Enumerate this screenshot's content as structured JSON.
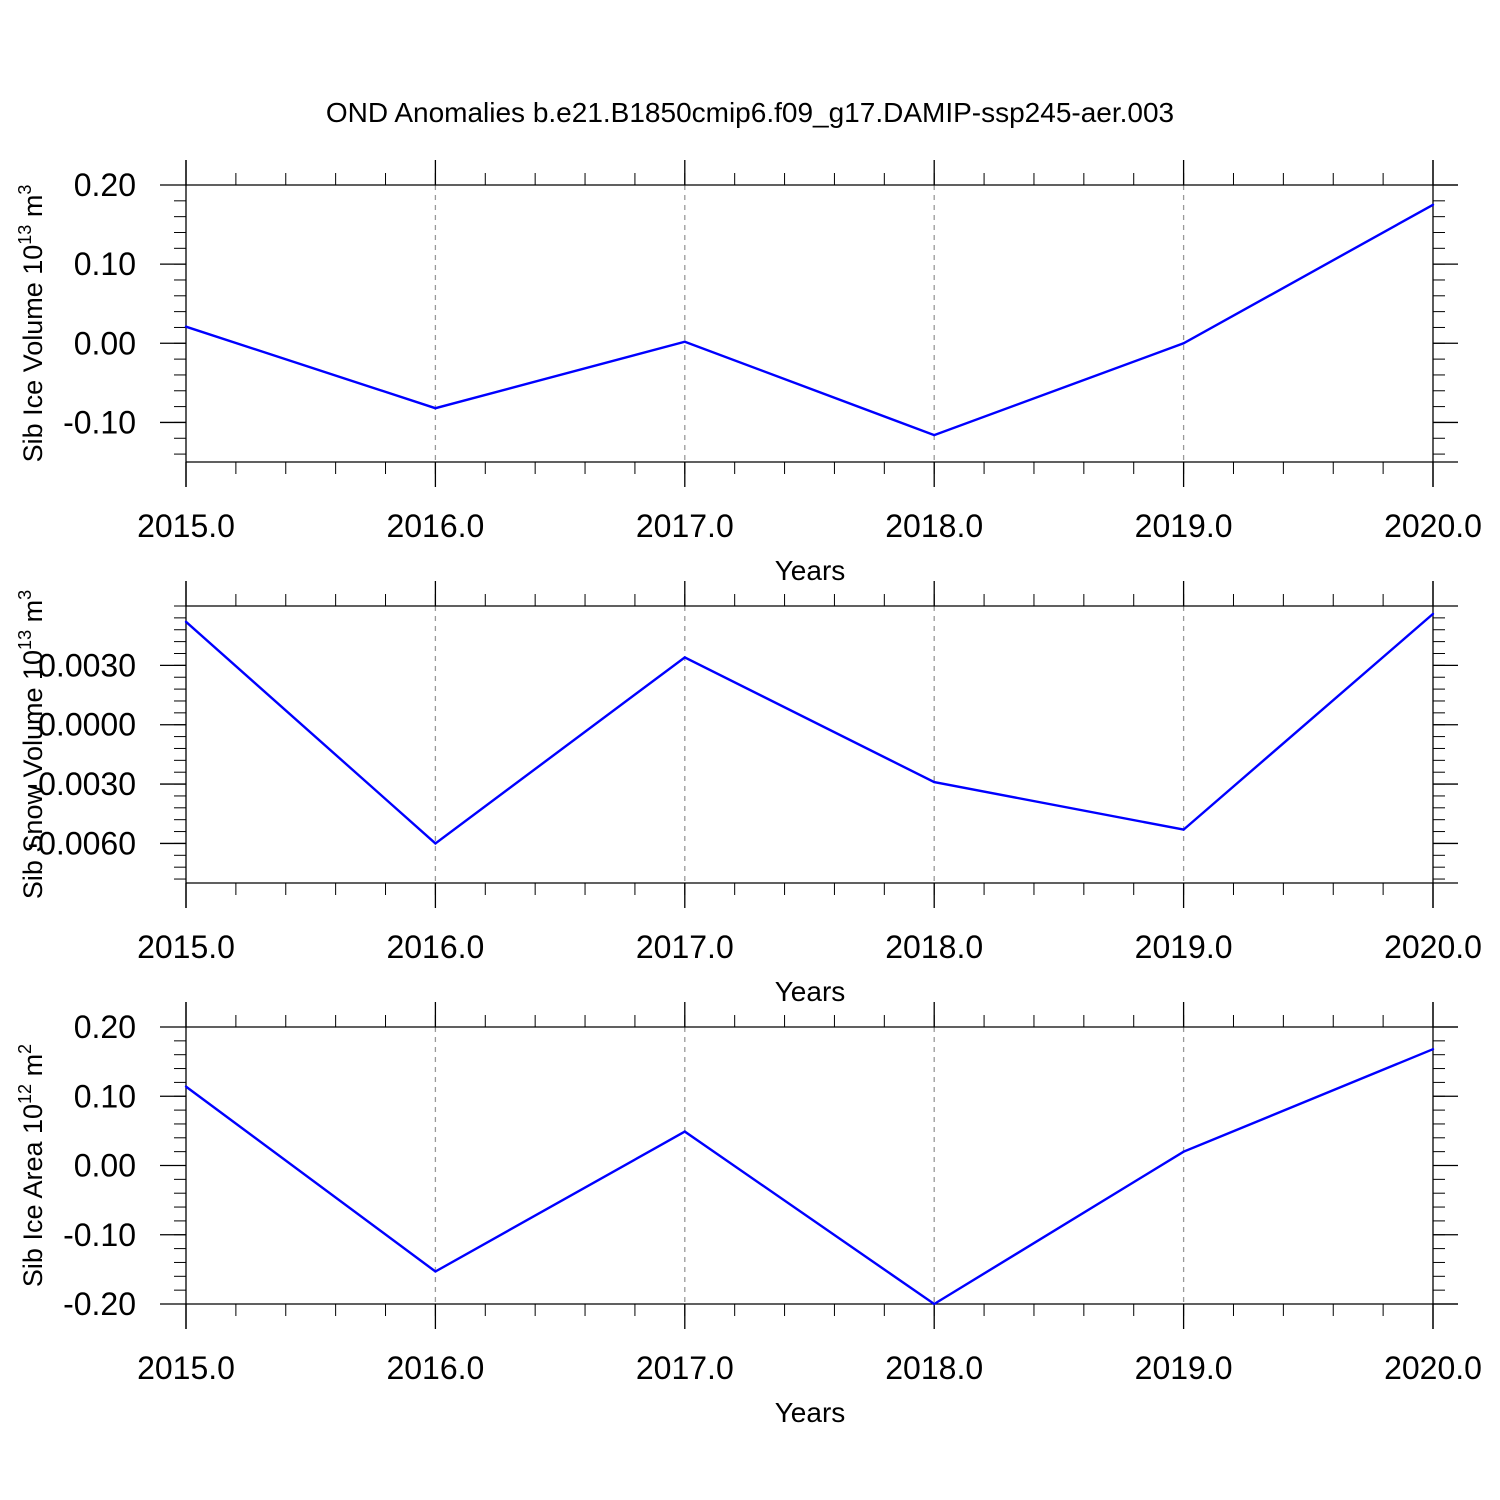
{
  "title": "OND Anomalies b.e21.B1850cmip6.f09_g17.DAMIP-ssp245-aer.003",
  "colors": {
    "line": "#0000ff",
    "axis": "#000000",
    "grid": "#999999"
  },
  "chart_data": [
    {
      "type": "line",
      "ylabel": {
        "base": "Sib Ice Volume 10",
        "exp": "13",
        "unit": " m",
        "unit_exp": "3"
      },
      "xlabel": "Years",
      "x": [
        2015,
        2016,
        2017,
        2018,
        2019,
        2020
      ],
      "series": [
        {
          "values": [
            0.021,
            -0.082,
            0.002,
            -0.116,
            0.0,
            0.175
          ]
        }
      ],
      "xlim": [
        2015,
        2020
      ],
      "ylim": [
        -0.15,
        0.2
      ],
      "xticks": [
        "2015.0",
        "2016.0",
        "2017.0",
        "2018.0",
        "2019.0",
        "2020.0"
      ],
      "yticks": [
        {
          "v": 0.2,
          "label": "0.20"
        },
        {
          "v": 0.1,
          "label": "0.10"
        },
        {
          "v": 0.0,
          "label": "0.00"
        },
        {
          "v": -0.1,
          "label": "-0.10"
        }
      ],
      "grid": "x-dashed"
    },
    {
      "type": "line",
      "ylabel": {
        "base": "Sib Snow Volume 10",
        "exp": "13",
        "unit": " m",
        "unit_exp": "3"
      },
      "xlabel": "Years",
      "x": [
        2015,
        2016,
        2017,
        2018,
        2019,
        2020
      ],
      "series": [
        {
          "values": [
            0.0052,
            -0.006,
            0.0034,
            -0.0029,
            -0.0053,
            0.0056
          ]
        }
      ],
      "xlim": [
        2015,
        2020
      ],
      "ylim": [
        -0.008,
        0.006
      ],
      "xticks": [
        "2015.0",
        "2016.0",
        "2017.0",
        "2018.0",
        "2019.0",
        "2020.0"
      ],
      "yticks": [
        {
          "v": 0.003,
          "label": "0.0030"
        },
        {
          "v": 0.0,
          "label": "0.0000"
        },
        {
          "v": -0.003,
          "label": "-0.0030"
        },
        {
          "v": -0.006,
          "label": "-0.0060"
        }
      ],
      "grid": "x-dashed"
    },
    {
      "type": "line",
      "ylabel": {
        "base": "Sib Ice Area 10",
        "exp": "12",
        "unit": " m",
        "unit_exp": "2"
      },
      "xlabel": "Years",
      "x": [
        2015,
        2016,
        2017,
        2018,
        2019,
        2020
      ],
      "series": [
        {
          "values": [
            0.114,
            -0.153,
            0.049,
            -0.2,
            0.02,
            0.168
          ]
        }
      ],
      "xlim": [
        2015,
        2020
      ],
      "ylim": [
        -0.2,
        0.2
      ],
      "xticks": [
        "2015.0",
        "2016.0",
        "2017.0",
        "2018.0",
        "2019.0",
        "2020.0"
      ],
      "yticks": [
        {
          "v": 0.2,
          "label": "0.20"
        },
        {
          "v": 0.1,
          "label": "0.10"
        },
        {
          "v": 0.0,
          "label": "0.00"
        },
        {
          "v": -0.1,
          "label": "-0.10"
        },
        {
          "v": -0.2,
          "label": "-0.20"
        }
      ],
      "grid": "x-dashed"
    }
  ]
}
